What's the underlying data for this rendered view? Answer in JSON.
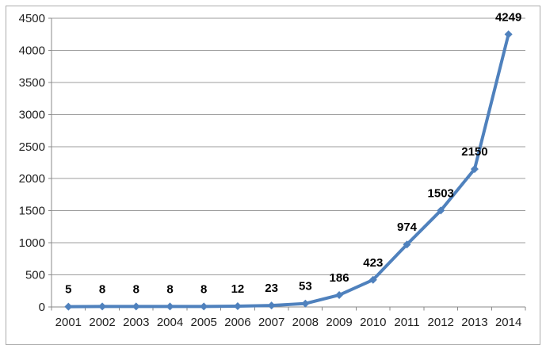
{
  "chart_data": {
    "type": "line",
    "categories": [
      "2001",
      "2002",
      "2003",
      "2004",
      "2005",
      "2006",
      "2007",
      "2008",
      "2009",
      "2010",
      "2011",
      "2012",
      "2013",
      "2014"
    ],
    "values": [
      5,
      8,
      8,
      8,
      8,
      12,
      23,
      53,
      186,
      423,
      974,
      1503,
      2150,
      4249
    ],
    "data_labels": [
      "5",
      "8",
      "8",
      "8",
      "8",
      "12",
      "23",
      "53",
      "186",
      "423",
      "974",
      "1503",
      "2150",
      "4249"
    ],
    "y_tick_labels": [
      "0",
      "500",
      "1000",
      "1500",
      "2000",
      "2500",
      "3000",
      "3500",
      "4000",
      "4500"
    ],
    "ylim": [
      0,
      4500
    ],
    "ytick_step": 500,
    "grid": true,
    "legend": false,
    "title": "",
    "xlabel": "",
    "ylabel": "",
    "marker": "diamond",
    "colors": {
      "line": "#4F81BD",
      "marker": "#4F81BD",
      "gridline": "#9D9D9D",
      "axis": "#8A8A8A",
      "tick_label": "#1F1F1F",
      "data_label": "#000000",
      "chart_border": "#ACACAC",
      "background": "#FFFFFF"
    }
  }
}
